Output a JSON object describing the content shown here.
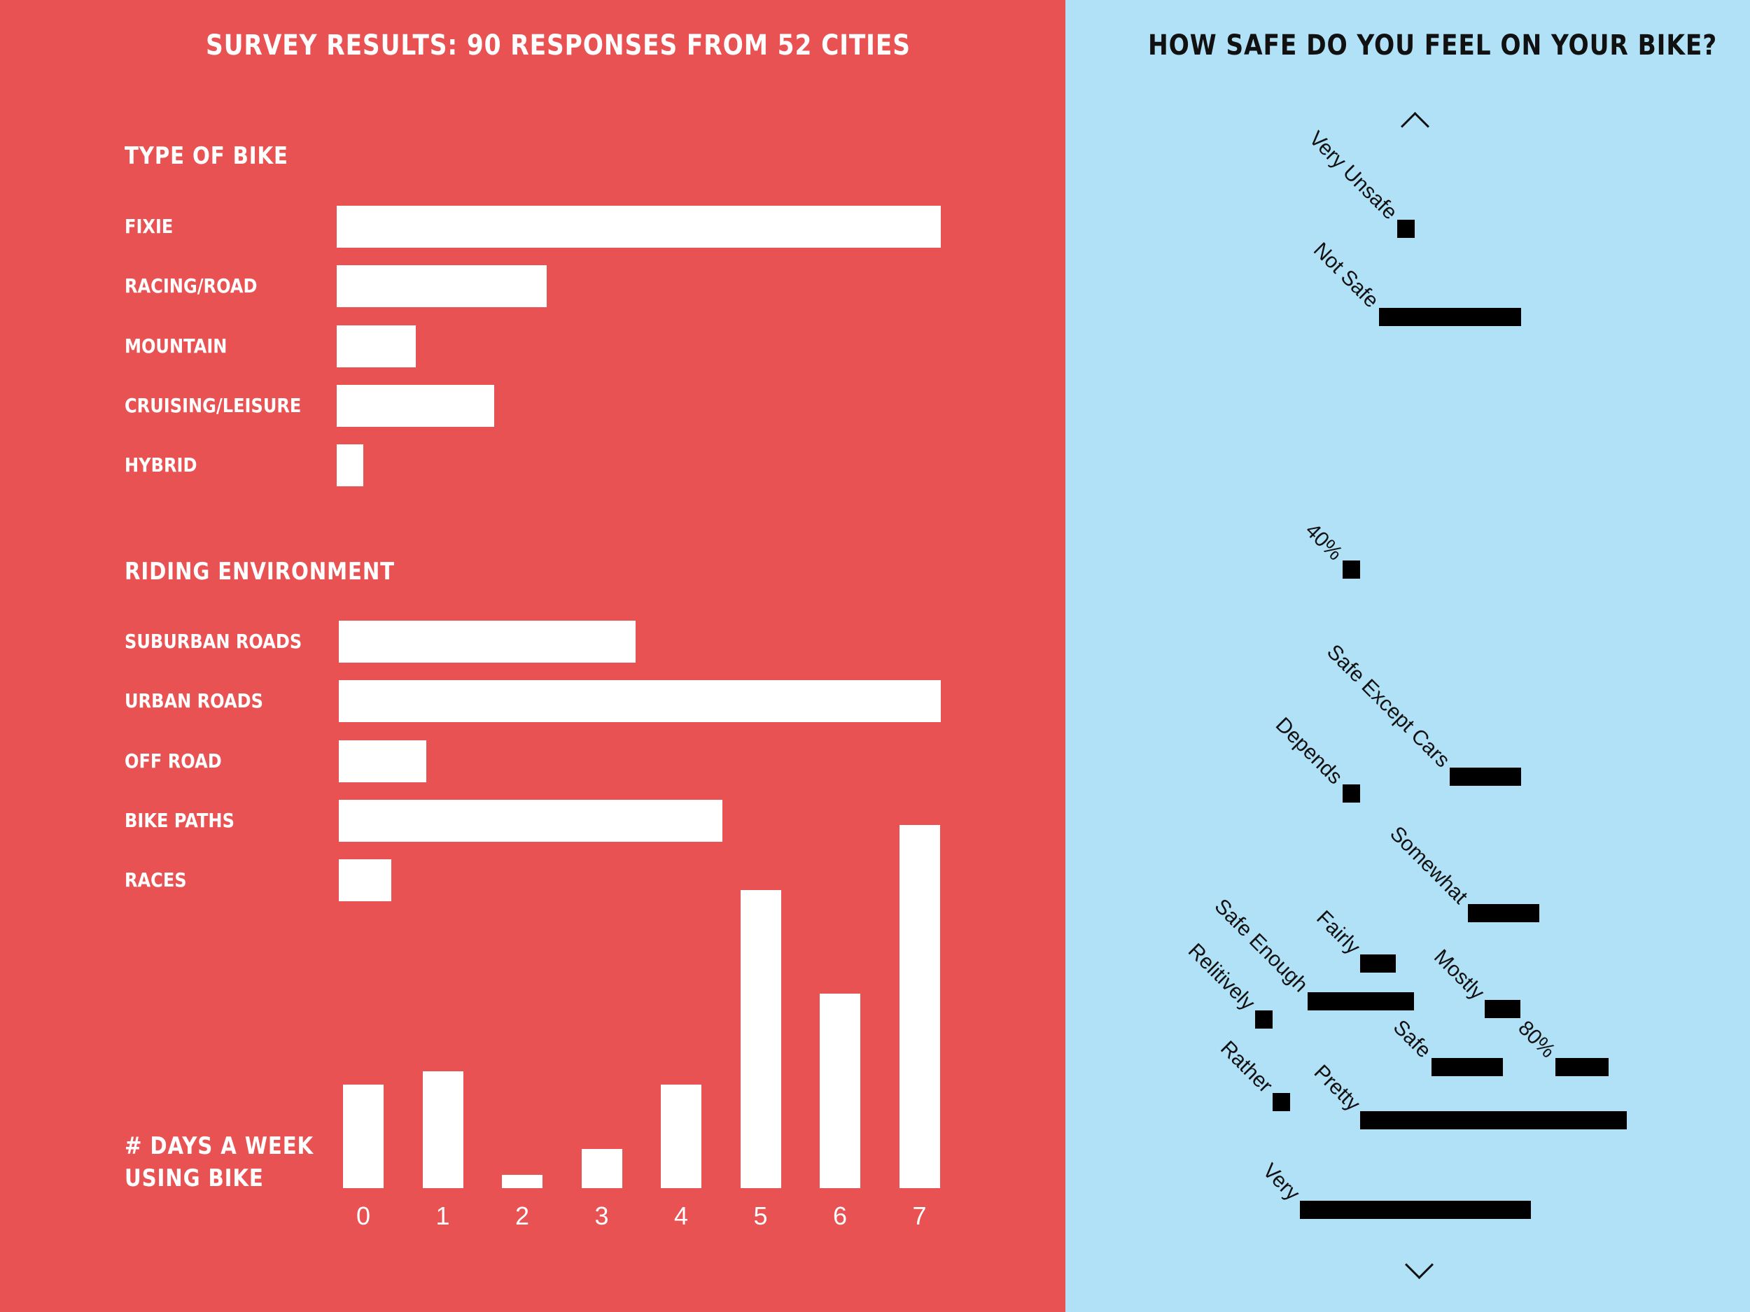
{
  "left_title": "SURVEY RESULTS: 90 RESPONSES FROM 52 CITIES",
  "right_title": "HOW SAFE DO YOU FEEL ON YOUR BIKE?",
  "icons": {
    "scroll_up": "chevron-up-icon",
    "scroll_down": "chevron-down-icon"
  },
  "colors": {
    "left_background": "#e85252",
    "right_background": "#b1e1f7",
    "bars": "#ffffff",
    "response_bars": "#000000"
  },
  "chart_data": [
    {
      "type": "bar",
      "orientation": "horizontal",
      "title": "TYPE OF BIKE",
      "categories": [
        "FIXIE",
        "RACING/ROAD",
        "MOUNTAIN",
        "CRUISING/LEISURE",
        "HYBRID"
      ],
      "values": [
        46,
        16,
        6,
        12,
        2
      ]
    },
    {
      "type": "bar",
      "orientation": "horizontal",
      "title": "RIDING ENVIRONMENT",
      "categories": [
        "SUBURBAN ROADS",
        "URBAN ROADS",
        "OFF ROAD",
        "BIKE PATHS",
        "RACES"
      ],
      "values": [
        34,
        69,
        10,
        44,
        6
      ]
    },
    {
      "type": "bar",
      "orientation": "vertical",
      "title": "# DAYS A WEEK USING BIKE",
      "title_lines": [
        "# DAYS A WEEK",
        "USING BIKE"
      ],
      "categories": [
        "0",
        "1",
        "2",
        "3",
        "4",
        "5",
        "6",
        "7"
      ],
      "values": [
        8,
        9,
        1,
        3,
        8,
        23,
        15,
        28
      ]
    },
    {
      "type": "bar",
      "orientation": "horizontal",
      "title": "HOW SAFE DO YOU FEEL ON YOUR BIKE?",
      "categories": [
        "Very Unsafe",
        "Not Safe",
        "40%",
        "Safe Except Cars",
        "Depends",
        "Somewhat",
        "Fairly",
        "Safe Enough",
        "Mostly",
        "Relitively",
        "Safe",
        "80%",
        "Rather",
        "Pretty",
        "Very"
      ],
      "values": [
        1,
        8,
        1,
        4,
        1,
        4,
        2,
        6,
        2,
        1,
        4,
        3,
        1,
        15,
        13
      ]
    }
  ]
}
